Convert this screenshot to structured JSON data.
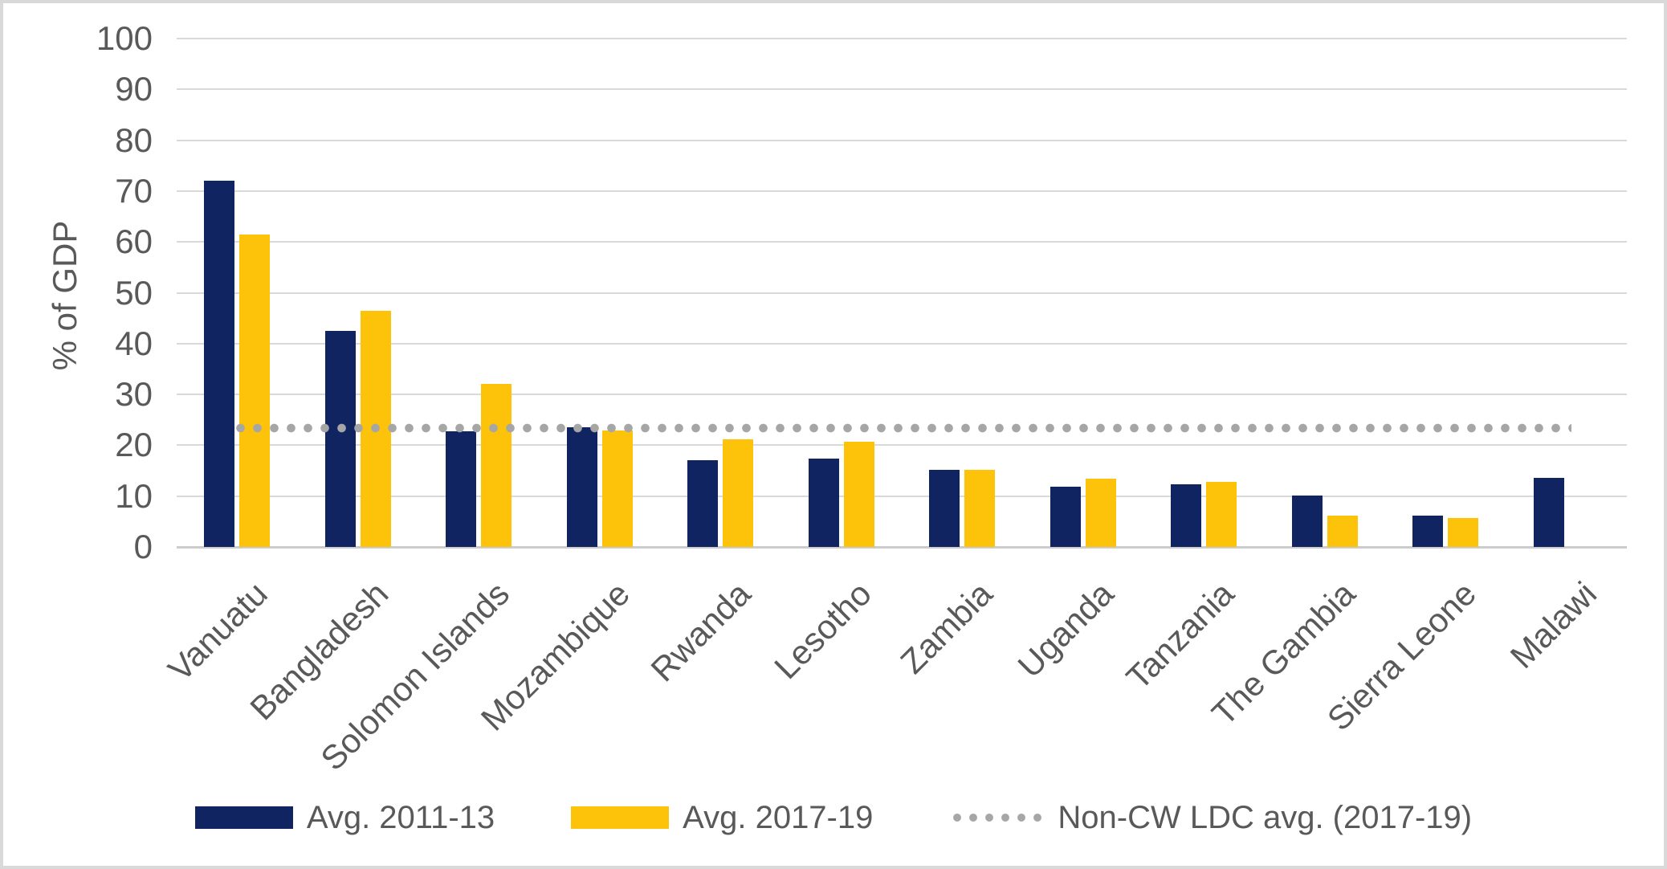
{
  "figure": {
    "background": "#FFFFFF",
    "border_color": "#D9D9D9",
    "text_color": "#595959",
    "gridline_color": "#D9D9D9",
    "axis_line_color": "#CCCCCC"
  },
  "chart_data": {
    "type": "bar",
    "title": "",
    "xlabel": "",
    "ylabel": "% of GDP",
    "ylim": [
      0,
      100
    ],
    "ytick_step": 10,
    "ytick_labels": [
      "0",
      "10",
      "20",
      "30",
      "40",
      "50",
      "60",
      "70",
      "80",
      "90",
      "100"
    ],
    "grid": "horizontal",
    "legend_position": "bottom",
    "categories": [
      "Vanuatu",
      "Bangladesh",
      "Solomon Islands",
      "Mozambique",
      "Rwanda",
      "Lesotho",
      "Zambia",
      "Uganda",
      "Tanzania",
      "The Gambia",
      "Sierra Leone",
      "Malawi"
    ],
    "series": [
      {
        "name": "Avg. 2011-13",
        "color": "#0F2460",
        "values": [
          72,
          42.5,
          22.8,
          23.6,
          17,
          17.4,
          15.1,
          11.9,
          12.4,
          10.1,
          6.1,
          13.6
        ]
      },
      {
        "name": "Avg. 2017-19",
        "color": "#FDC20A",
        "values": [
          61.5,
          46.5,
          32,
          22.9,
          21.2,
          20.7,
          15.2,
          13.4,
          12.8,
          6.1,
          5.7,
          null
        ]
      }
    ],
    "reference_line": {
      "name": "Non-CW LDC avg. (2017-19)",
      "value": 23.4,
      "style": "dotted",
      "color": "#A6A6A6"
    }
  }
}
